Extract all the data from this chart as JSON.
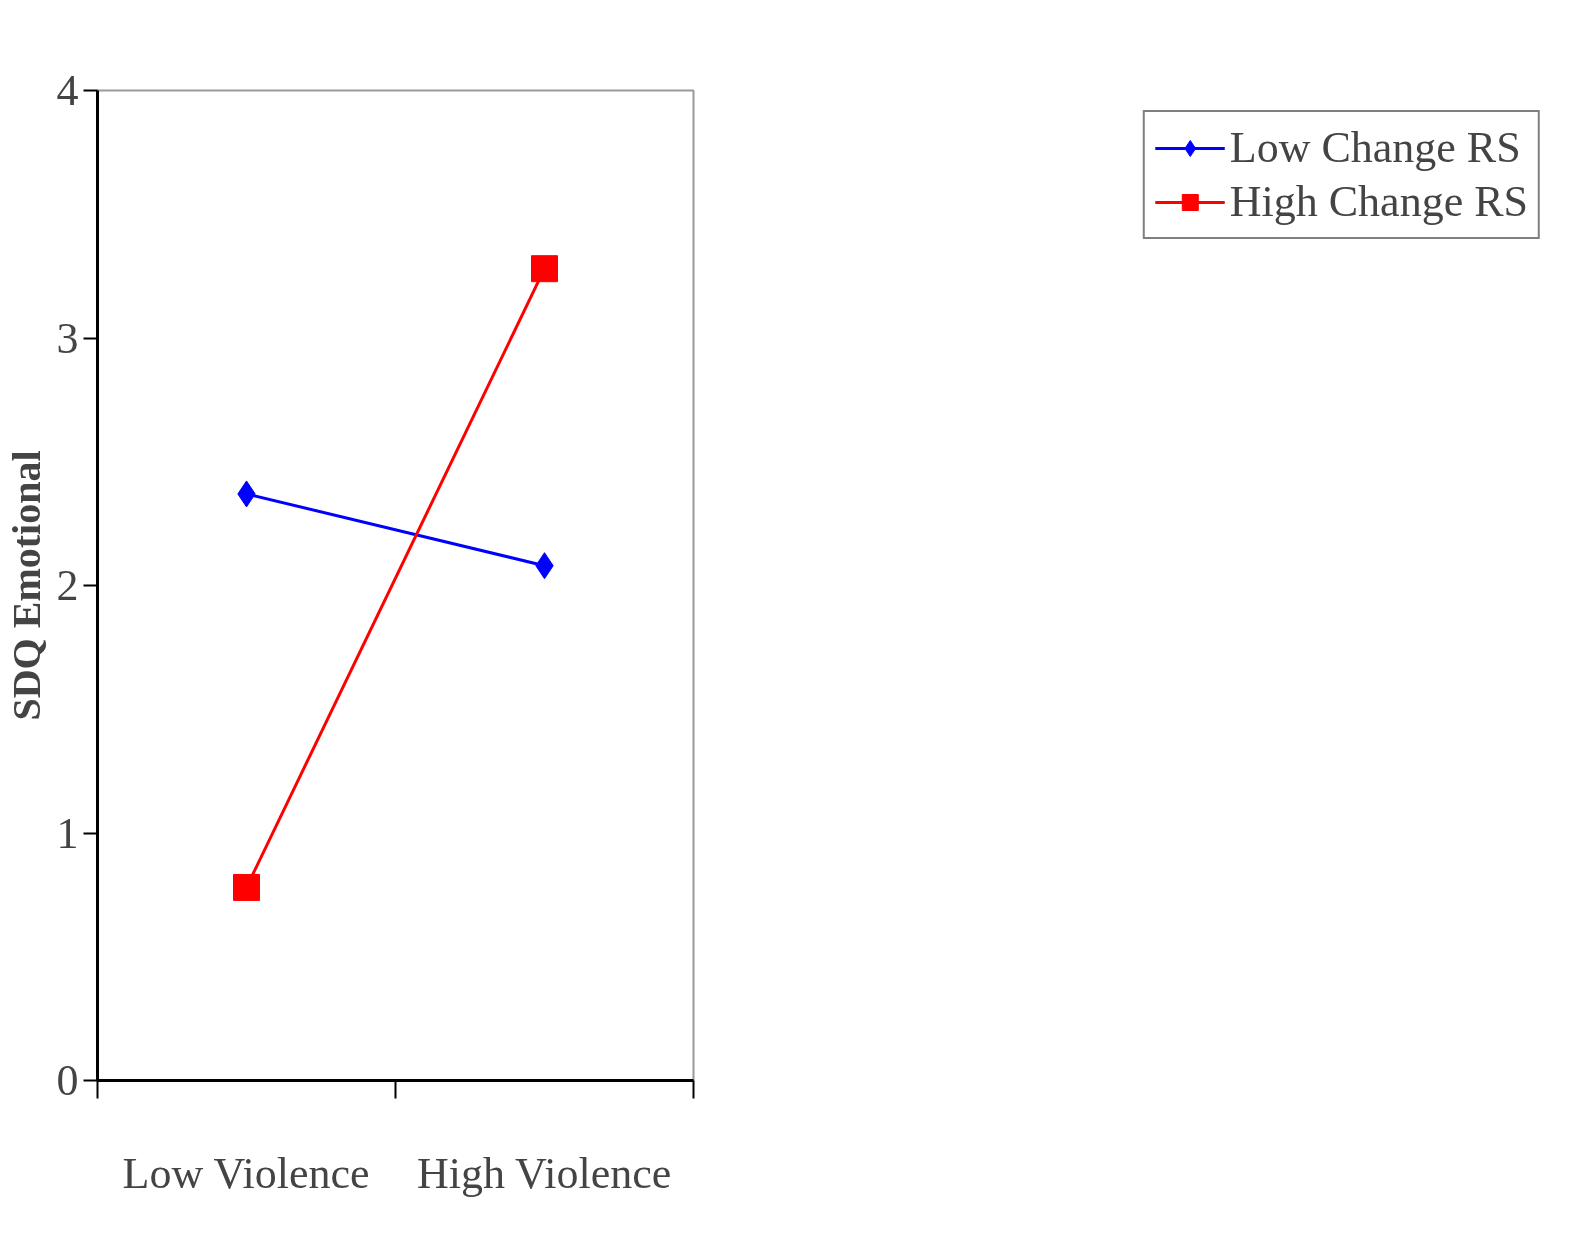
{
  "chart_data": {
    "type": "line",
    "ylabel": "SDQ Emotional",
    "categories": [
      "Low Violence",
      "High Violence"
    ],
    "series": [
      {
        "name": "Low Change RS",
        "color": "#0000ff",
        "marker": "diamond",
        "values": [
          2.37,
          2.08
        ]
      },
      {
        "name": "High Change RS",
        "color": "#ff0000",
        "marker": "square",
        "values": [
          0.78,
          3.28
        ]
      }
    ],
    "ylim": [
      0,
      4
    ],
    "yticks": [
      0,
      1,
      2,
      3,
      4
    ],
    "grid": false,
    "legend": "right"
  }
}
